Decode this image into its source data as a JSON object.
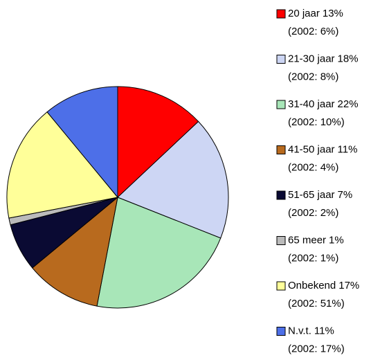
{
  "chart_data": {
    "type": "pie",
    "categories": [
      "20 jaar",
      "21-30 jaar",
      "31-40 jaar",
      "41-50 jaar",
      "51-65 jaar",
      "65 meer",
      "Onbekend",
      "N.v.t."
    ],
    "values": [
      13,
      18,
      22,
      11,
      7,
      1,
      17,
      11
    ],
    "value_labels": [
      "13%",
      "18%",
      "22%",
      "11%",
      "7%",
      "1%",
      "17%",
      "11%"
    ],
    "comparison_labels": [
      "(2002: 6%)",
      "(2002: 8%)",
      "(2002: 10%)",
      "(2002: 4%)",
      "(2002: 2%)",
      "(2002: 1%)",
      "(2002: 51%)",
      "(2002: 17%)"
    ],
    "colors": [
      "#ff0000",
      "#cdd6f4",
      "#a8e6b8",
      "#b86a1e",
      "#0a0a33",
      "#bbbbbb",
      "#ffff99",
      "#4d6fe8"
    ]
  }
}
